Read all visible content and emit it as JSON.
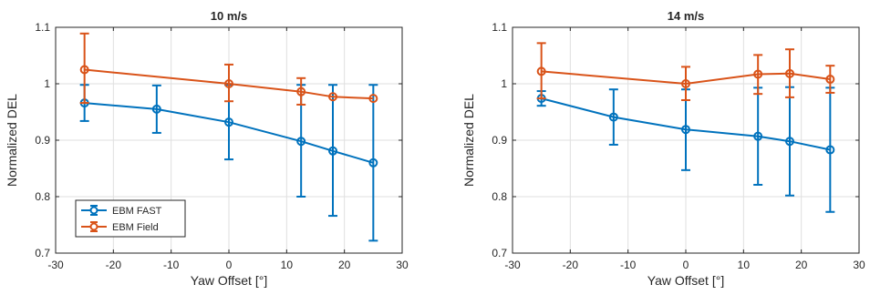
{
  "chart_data": [
    {
      "type": "line",
      "title": "10 m/s",
      "xlabel": "Yaw Offset [°]",
      "ylabel": "Normalized DEL",
      "xlim": [
        -30,
        30
      ],
      "ylim": [
        0.7,
        1.1
      ],
      "xticks": [
        -30,
        -20,
        -10,
        0,
        10,
        20,
        30
      ],
      "yticks": [
        0.7,
        0.8,
        0.9,
        1,
        1.1
      ],
      "x_tick_labels": [
        "-30",
        "-20",
        "-10",
        "0",
        "10",
        "20",
        "30"
      ],
      "y_tick_labels": [
        "0.7",
        "0.8",
        "0.9",
        "1",
        "1.1"
      ],
      "grid": true,
      "legend": "bottom-left",
      "series": [
        {
          "name": "EBM FAST",
          "color": "#0072BD",
          "marker": "circle",
          "x": [
            -25,
            -12.5,
            0,
            12.5,
            18,
            25
          ],
          "y": [
            0.966,
            0.955,
            0.932,
            0.898,
            0.881,
            0.86
          ],
          "err_low": [
            0.934,
            0.913,
            0.866,
            0.8,
            0.766,
            0.722
          ],
          "err_high": [
            0.998,
            0.997,
            0.998,
            0.998,
            0.998,
            0.998
          ]
        },
        {
          "name": "EBM Field",
          "color": "#D95319",
          "marker": "circle",
          "x": [
            -25,
            0,
            12.5,
            18,
            25
          ],
          "y": [
            1.025,
            1.0,
            0.986,
            0.977,
            0.974
          ],
          "err_low": [
            0.966,
            0.969,
            0.963,
            0.977,
            0.974
          ],
          "err_high": [
            1.089,
            1.034,
            1.01,
            0.977,
            0.974
          ]
        }
      ]
    },
    {
      "type": "line",
      "title": "14 m/s",
      "xlabel": "Yaw Offset [°]",
      "ylabel": "Normalized DEL",
      "xlim": [
        -30,
        30
      ],
      "ylim": [
        0.7,
        1.1
      ],
      "xticks": [
        -30,
        -20,
        -10,
        0,
        10,
        20,
        30
      ],
      "yticks": [
        0.7,
        0.8,
        0.9,
        1,
        1.1
      ],
      "x_tick_labels": [
        "-30",
        "-20",
        "-10",
        "0",
        "10",
        "20",
        "30"
      ],
      "y_tick_labels": [
        "0.7",
        "0.8",
        "0.9",
        "1",
        "1.1"
      ],
      "grid": true,
      "series": [
        {
          "name": "EBM FAST",
          "color": "#0072BD",
          "marker": "circle",
          "x": [
            -25,
            -12.5,
            0,
            12.5,
            18,
            25
          ],
          "y": [
            0.974,
            0.941,
            0.919,
            0.907,
            0.898,
            0.883
          ],
          "err_low": [
            0.961,
            0.892,
            0.847,
            0.821,
            0.802,
            0.773
          ],
          "err_high": [
            0.987,
            0.99,
            0.99,
            0.993,
            0.994,
            0.993
          ]
        },
        {
          "name": "EBM Field",
          "color": "#D95319",
          "marker": "circle",
          "x": [
            -25,
            0,
            12.5,
            18,
            25
          ],
          "y": [
            1.022,
            1.0,
            1.017,
            1.018,
            1.008
          ],
          "err_low": [
            0.974,
            0.971,
            0.982,
            0.976,
            0.984
          ],
          "err_high": [
            1.072,
            1.03,
            1.051,
            1.061,
            1.032
          ]
        }
      ]
    }
  ]
}
